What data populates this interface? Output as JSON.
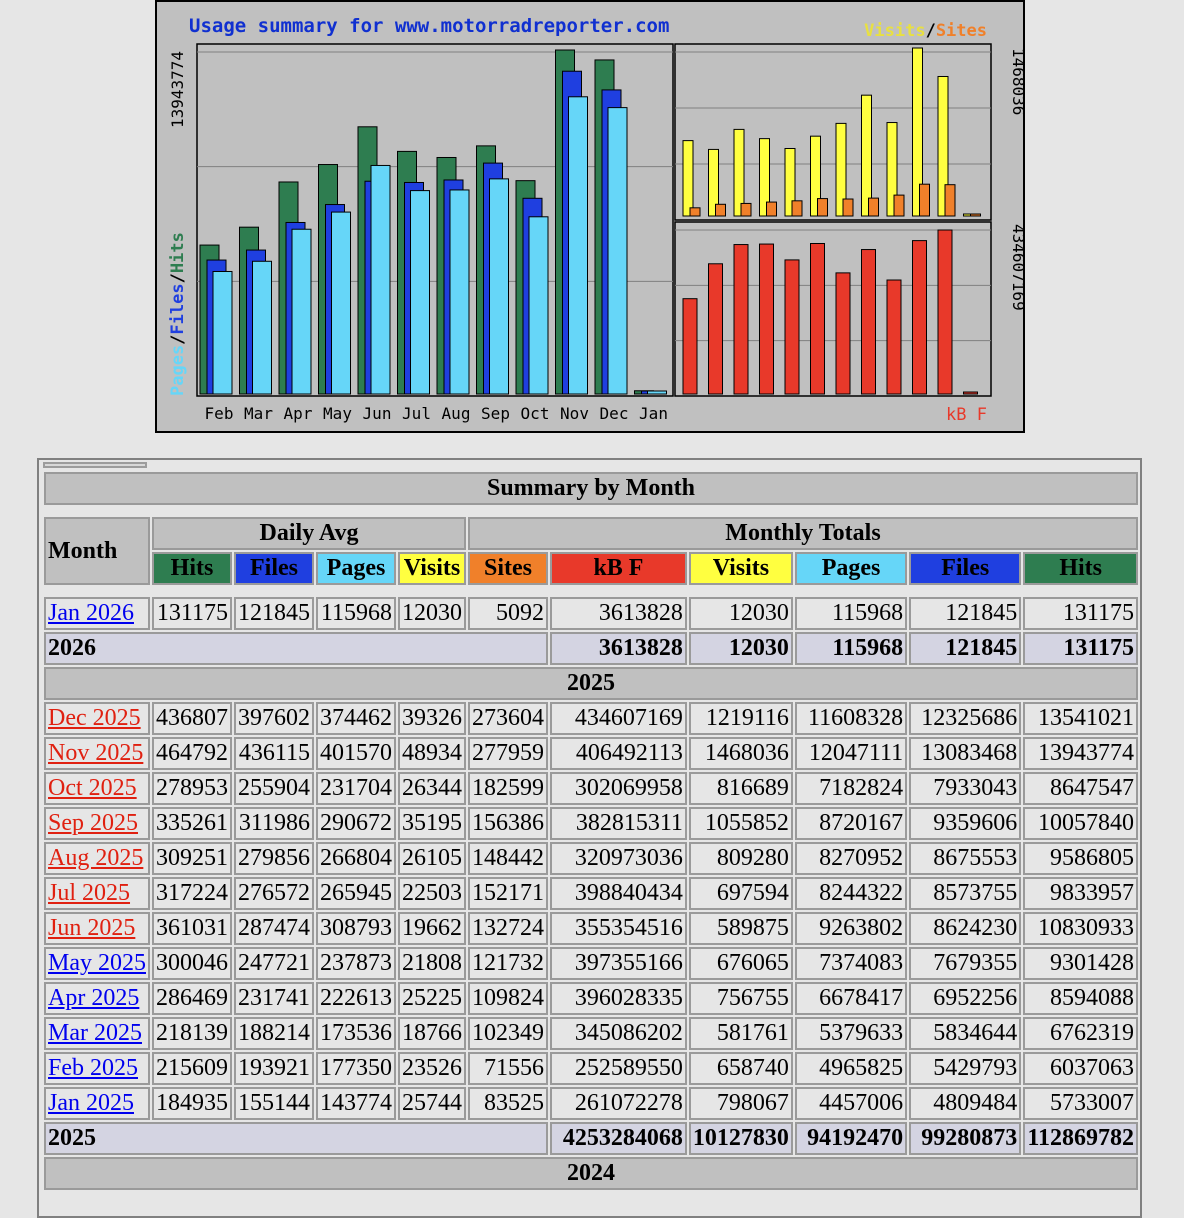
{
  "chart": {
    "title": "Usage summary for www.motorradreporter.com",
    "legend_left": [
      "Pages",
      "/",
      "Files",
      "/",
      "Hits"
    ],
    "legend_right": [
      "Visits",
      "/",
      "Sites"
    ],
    "legend_kb": "kB F",
    "max_hits_label": "13943774",
    "max_visits_label": "1468036",
    "max_kb_label": "434607169",
    "colors": {
      "hits": "#2e7d50",
      "files": "#1f3fe0",
      "pages": "#66d6f8",
      "visits": "#ffff40",
      "sites": "#f0802a",
      "kb": "#e8392a",
      "bg": "#c0c0c0",
      "title": "#1030d0"
    }
  },
  "chart_data": {
    "type": "bar",
    "categories": [
      "Feb",
      "Mar",
      "Apr",
      "May",
      "Jun",
      "Jul",
      "Aug",
      "Sep",
      "Oct",
      "Nov",
      "Dec",
      "Jan"
    ],
    "series": [
      {
        "name": "Hits",
        "values": [
          6037063,
          6762319,
          8594088,
          9301428,
          10830933,
          9833957,
          9586805,
          10057840,
          8647547,
          13943774,
          13541021,
          131175
        ]
      },
      {
        "name": "Files",
        "values": [
          5429793,
          5834644,
          6952256,
          7679355,
          8624230,
          8573755,
          8675553,
          9359606,
          7933043,
          13083468,
          12325686,
          121845
        ]
      },
      {
        "name": "Pages",
        "values": [
          4965825,
          5379633,
          6678417,
          7374083,
          9263802,
          8244322,
          8270952,
          8720167,
          7182824,
          12047111,
          11608328,
          115968
        ]
      },
      {
        "name": "Visits",
        "values": [
          658740,
          581761,
          756755,
          676065,
          589875,
          697594,
          809280,
          1055852,
          816689,
          1468036,
          1219116,
          12030
        ]
      },
      {
        "name": "Sites",
        "values": [
          71556,
          102349,
          109824,
          121732,
          132724,
          152171,
          148442,
          156386,
          182599,
          277959,
          273604,
          5092
        ]
      },
      {
        "name": "kB F",
        "values": [
          252589550,
          345086202,
          396028335,
          397355166,
          355354516,
          398840434,
          320973036,
          382815311,
          302069958,
          406492113,
          434607169,
          3613828
        ]
      }
    ],
    "title": "Usage summary for www.motorradreporter.com"
  },
  "table": {
    "title": "Summary by Month",
    "month_header": "Month",
    "daily_avg_header": "Daily Avg",
    "monthly_totals_header": "Monthly Totals",
    "columns": {
      "hits": "Hits",
      "files": "Files",
      "pages": "Pages",
      "visits": "Visits",
      "sites": "Sites",
      "kb": "kB F"
    },
    "year_2026": {
      "rows": [
        {
          "month": "Jan 2026",
          "color": "blue",
          "d_hits": "131175",
          "d_files": "121845",
          "d_pages": "115968",
          "d_visits": "12030",
          "sites": "5092",
          "kb": "3613828",
          "visits": "12030",
          "pages": "115968",
          "files": "121845",
          "hits": "131175"
        }
      ],
      "total": {
        "label": "2026",
        "kb": "3613828",
        "visits": "12030",
        "pages": "115968",
        "files": "121845",
        "hits": "131175"
      }
    },
    "year_2025": {
      "label": "2025",
      "rows": [
        {
          "month": "Dec 2025",
          "color": "red",
          "d_hits": "436807",
          "d_files": "397602",
          "d_pages": "374462",
          "d_visits": "39326",
          "sites": "273604",
          "kb": "434607169",
          "visits": "1219116",
          "pages": "11608328",
          "files": "12325686",
          "hits": "13541021"
        },
        {
          "month": "Nov 2025",
          "color": "red",
          "d_hits": "464792",
          "d_files": "436115",
          "d_pages": "401570",
          "d_visits": "48934",
          "sites": "277959",
          "kb": "406492113",
          "visits": "1468036",
          "pages": "12047111",
          "files": "13083468",
          "hits": "13943774"
        },
        {
          "month": "Oct 2025",
          "color": "red",
          "d_hits": "278953",
          "d_files": "255904",
          "d_pages": "231704",
          "d_visits": "26344",
          "sites": "182599",
          "kb": "302069958",
          "visits": "816689",
          "pages": "7182824",
          "files": "7933043",
          "hits": "8647547"
        },
        {
          "month": "Sep 2025",
          "color": "red",
          "d_hits": "335261",
          "d_files": "311986",
          "d_pages": "290672",
          "d_visits": "35195",
          "sites": "156386",
          "kb": "382815311",
          "visits": "1055852",
          "pages": "8720167",
          "files": "9359606",
          "hits": "10057840"
        },
        {
          "month": "Aug 2025",
          "color": "red",
          "d_hits": "309251",
          "d_files": "279856",
          "d_pages": "266804",
          "d_visits": "26105",
          "sites": "148442",
          "kb": "320973036",
          "visits": "809280",
          "pages": "8270952",
          "files": "8675553",
          "hits": "9586805"
        },
        {
          "month": "Jul 2025",
          "color": "red",
          "d_hits": "317224",
          "d_files": "276572",
          "d_pages": "265945",
          "d_visits": "22503",
          "sites": "152171",
          "kb": "398840434",
          "visits": "697594",
          "pages": "8244322",
          "files": "8573755",
          "hits": "9833957"
        },
        {
          "month": "Jun 2025",
          "color": "red",
          "d_hits": "361031",
          "d_files": "287474",
          "d_pages": "308793",
          "d_visits": "19662",
          "sites": "132724",
          "kb": "355354516",
          "visits": "589875",
          "pages": "9263802",
          "files": "8624230",
          "hits": "10830933"
        },
        {
          "month": "May 2025",
          "color": "blue",
          "d_hits": "300046",
          "d_files": "247721",
          "d_pages": "237873",
          "d_visits": "21808",
          "sites": "121732",
          "kb": "397355166",
          "visits": "676065",
          "pages": "7374083",
          "files": "7679355",
          "hits": "9301428"
        },
        {
          "month": "Apr 2025",
          "color": "blue",
          "d_hits": "286469",
          "d_files": "231741",
          "d_pages": "222613",
          "d_visits": "25225",
          "sites": "109824",
          "kb": "396028335",
          "visits": "756755",
          "pages": "6678417",
          "files": "6952256",
          "hits": "8594088"
        },
        {
          "month": "Mar 2025",
          "color": "blue",
          "d_hits": "218139",
          "d_files": "188214",
          "d_pages": "173536",
          "d_visits": "18766",
          "sites": "102349",
          "kb": "345086202",
          "visits": "581761",
          "pages": "5379633",
          "files": "5834644",
          "hits": "6762319"
        },
        {
          "month": "Feb 2025",
          "color": "blue",
          "d_hits": "215609",
          "d_files": "193921",
          "d_pages": "177350",
          "d_visits": "23526",
          "sites": "71556",
          "kb": "252589550",
          "visits": "658740",
          "pages": "4965825",
          "files": "5429793",
          "hits": "6037063"
        },
        {
          "month": "Jan 2025",
          "color": "blue",
          "d_hits": "184935",
          "d_files": "155144",
          "d_pages": "143774",
          "d_visits": "25744",
          "sites": "83525",
          "kb": "261072278",
          "visits": "798067",
          "pages": "4457006",
          "files": "4809484",
          "hits": "5733007"
        }
      ],
      "total": {
        "label": "2025",
        "kb": "4253284068",
        "visits": "10127830",
        "pages": "94192470",
        "files": "99280873",
        "hits": "112869782"
      }
    },
    "next_year_label": "2024"
  }
}
